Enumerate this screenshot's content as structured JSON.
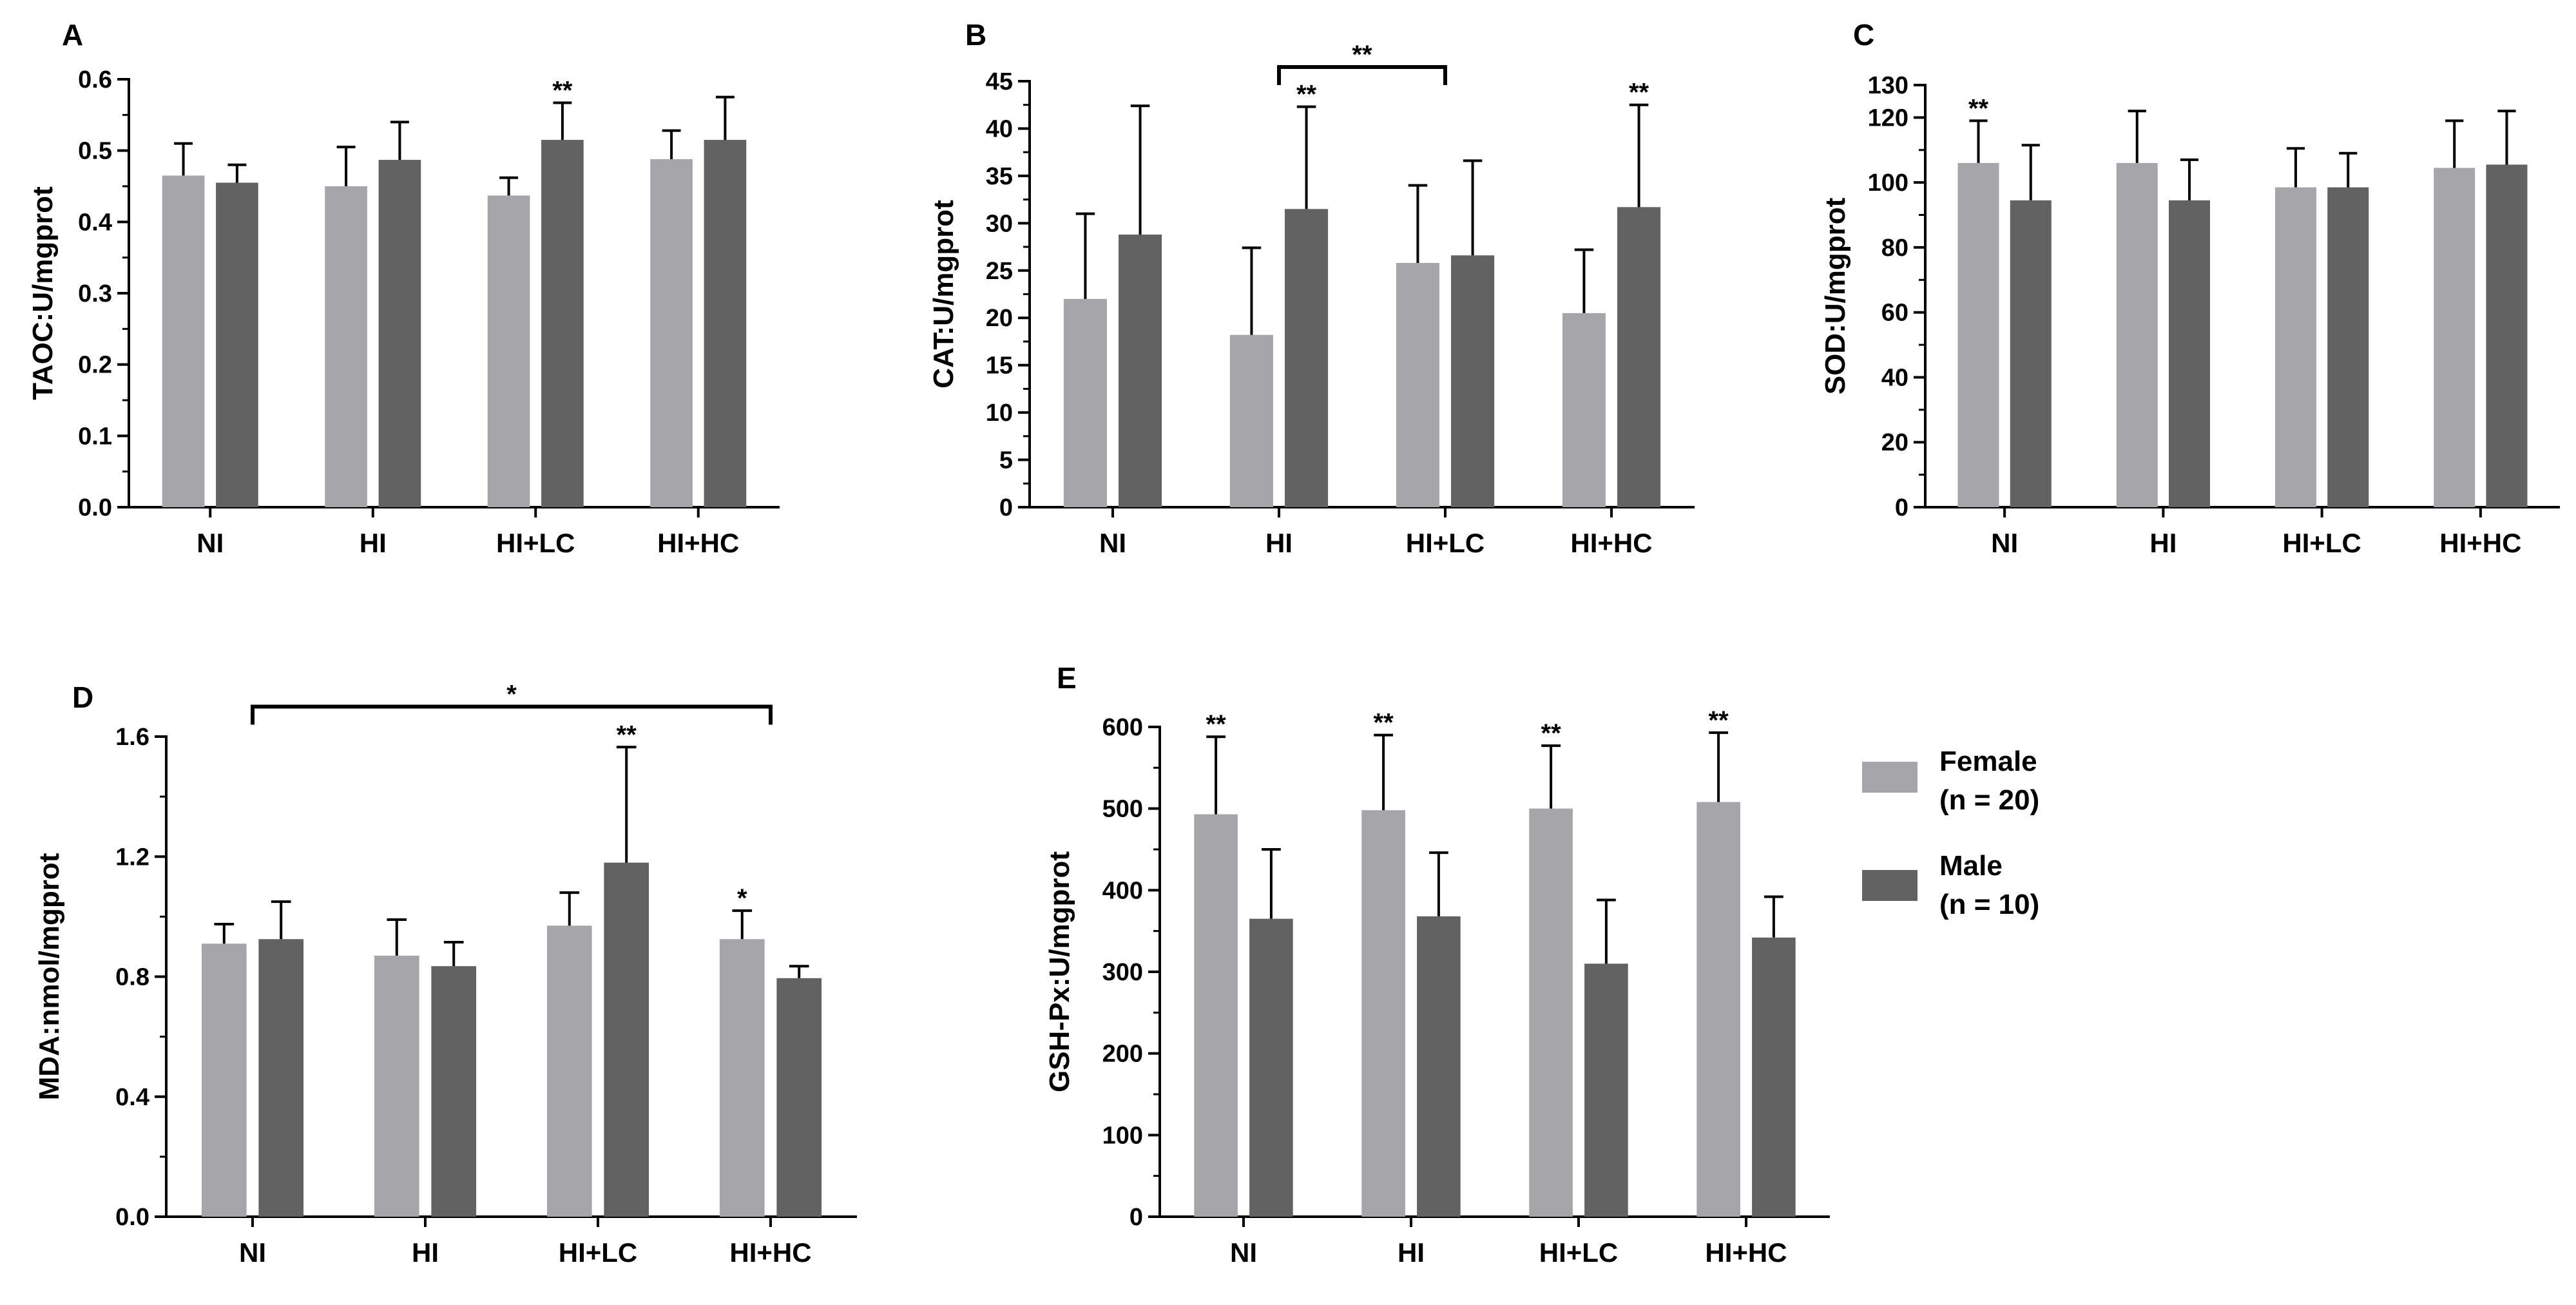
{
  "colors": {
    "female": "#a6a5a9",
    "male": "#626262",
    "axis": "#000000"
  },
  "legend": [
    {
      "label": "Female",
      "n": "(n = 20)",
      "color": "#a6a5a9"
    },
    {
      "label": "Male",
      "n": "(n = 10)",
      "color": "#626262"
    }
  ],
  "chart_data": [
    {
      "panel": "A",
      "type": "bar",
      "ylabel": "TAOC:U/mgprot",
      "categories": [
        "NI",
        "HI",
        "HI+LC",
        "HI+HC"
      ],
      "ylim": [
        0,
        0.6
      ],
      "yticks": [
        0,
        0.1,
        0.2,
        0.3,
        0.4,
        0.5,
        0.6
      ],
      "yticklabels": [
        "0.0",
        "0.1",
        "0.2",
        "0.3",
        "0.4",
        "0.5",
        "0.6"
      ],
      "series": [
        {
          "name": "Female",
          "values": [
            0.465,
            0.45,
            0.437,
            0.488
          ],
          "errors": [
            0.045,
            0.055,
            0.025,
            0.04
          ]
        },
        {
          "name": "Male",
          "values": [
            0.455,
            0.487,
            0.515,
            0.515
          ],
          "errors": [
            0.025,
            0.053,
            0.052,
            0.06
          ]
        }
      ],
      "annotations": [
        {
          "category": 2,
          "series": 1,
          "text": "**"
        }
      ],
      "brackets": []
    },
    {
      "panel": "B",
      "type": "bar",
      "ylabel": "CAT:U/mgprot",
      "categories": [
        "NI",
        "HI",
        "HI+LC",
        "HI+HC"
      ],
      "ylim": [
        0,
        45
      ],
      "yticks": [
        0,
        5,
        10,
        15,
        20,
        25,
        30,
        35,
        40,
        45
      ],
      "yticklabels": [
        "0",
        "5",
        "10",
        "15",
        "20",
        "25",
        "30",
        "35",
        "40",
        "45"
      ],
      "series": [
        {
          "name": "Female",
          "values": [
            22,
            18.2,
            25.8,
            20.5
          ],
          "errors": [
            9,
            9.2,
            8.2,
            6.7
          ]
        },
        {
          "name": "Male",
          "values": [
            28.8,
            31.5,
            26.6,
            31.7
          ],
          "errors": [
            13.6,
            10.8,
            10,
            10.8
          ]
        }
      ],
      "annotations": [
        {
          "category": 1,
          "series": 1,
          "text": "**"
        },
        {
          "category": 3,
          "series": 1,
          "text": "**"
        }
      ],
      "brackets": [
        {
          "from": 1,
          "to": 2,
          "y": 46.5,
          "text": "**"
        }
      ]
    },
    {
      "panel": "C",
      "type": "bar",
      "ylabel": "SOD:U/mgprot",
      "categories": [
        "NI",
        "HI",
        "HI+LC",
        "HI+HC"
      ],
      "ylim": [
        0,
        130
      ],
      "yticks": [
        0,
        20,
        40,
        60,
        80,
        100,
        120,
        130
      ],
      "yticklabels": [
        "0",
        "20",
        "40",
        "60",
        "80",
        "100",
        "120",
        "130"
      ],
      "series": [
        {
          "name": "Female",
          "values": [
            106,
            106,
            98.5,
            104.5
          ],
          "errors": [
            13,
            16,
            12,
            14.5
          ]
        },
        {
          "name": "Male",
          "values": [
            94.5,
            94.5,
            98.5,
            105.5
          ],
          "errors": [
            17,
            12.5,
            10.5,
            16.5
          ]
        }
      ],
      "annotations": [
        {
          "category": 0,
          "series": 0,
          "text": "**"
        }
      ],
      "brackets": []
    },
    {
      "panel": "D",
      "type": "bar",
      "ylabel": "MDA:nmol/mgprot",
      "categories": [
        "NI",
        "HI",
        "HI+LC",
        "HI+HC"
      ],
      "ylim": [
        0,
        1.6
      ],
      "yticks": [
        0,
        0.4,
        0.8,
        1.2,
        1.6
      ],
      "yticklabels": [
        "0.0",
        "0.4",
        "0.8",
        "1.2",
        "1.6"
      ],
      "series": [
        {
          "name": "Female",
          "values": [
            0.91,
            0.87,
            0.97,
            0.925
          ],
          "errors": [
            0.065,
            0.12,
            0.11,
            0.095
          ]
        },
        {
          "name": "Male",
          "values": [
            0.925,
            0.835,
            1.18,
            0.795
          ],
          "errors": [
            0.125,
            0.08,
            0.385,
            0.04
          ]
        }
      ],
      "annotations": [
        {
          "category": 2,
          "series": 1,
          "text": "**"
        },
        {
          "category": 3,
          "series": 0,
          "text": "*"
        }
      ],
      "brackets": [
        {
          "from": 0,
          "to": 3,
          "y": 1.7,
          "text": "*"
        }
      ]
    },
    {
      "panel": "E",
      "type": "bar",
      "ylabel": "GSH-Px:U/mgprot",
      "categories": [
        "NI",
        "HI",
        "HI+LC",
        "HI+HC"
      ],
      "ylim": [
        0,
        600
      ],
      "yticks": [
        0,
        100,
        200,
        300,
        400,
        500,
        600
      ],
      "yticklabels": [
        "0",
        "100",
        "200",
        "300",
        "400",
        "500",
        "600"
      ],
      "series": [
        {
          "name": "Female",
          "values": [
            493,
            498,
            500,
            508
          ],
          "errors": [
            95,
            92,
            77,
            85
          ]
        },
        {
          "name": "Male",
          "values": [
            365,
            368,
            310,
            342
          ],
          "errors": [
            85,
            78,
            78,
            50
          ]
        }
      ],
      "annotations": [
        {
          "category": 0,
          "series": 0,
          "text": "**"
        },
        {
          "category": 1,
          "series": 0,
          "text": "**"
        },
        {
          "category": 2,
          "series": 0,
          "text": "**"
        },
        {
          "category": 3,
          "series": 0,
          "text": "**"
        }
      ],
      "brackets": []
    }
  ]
}
